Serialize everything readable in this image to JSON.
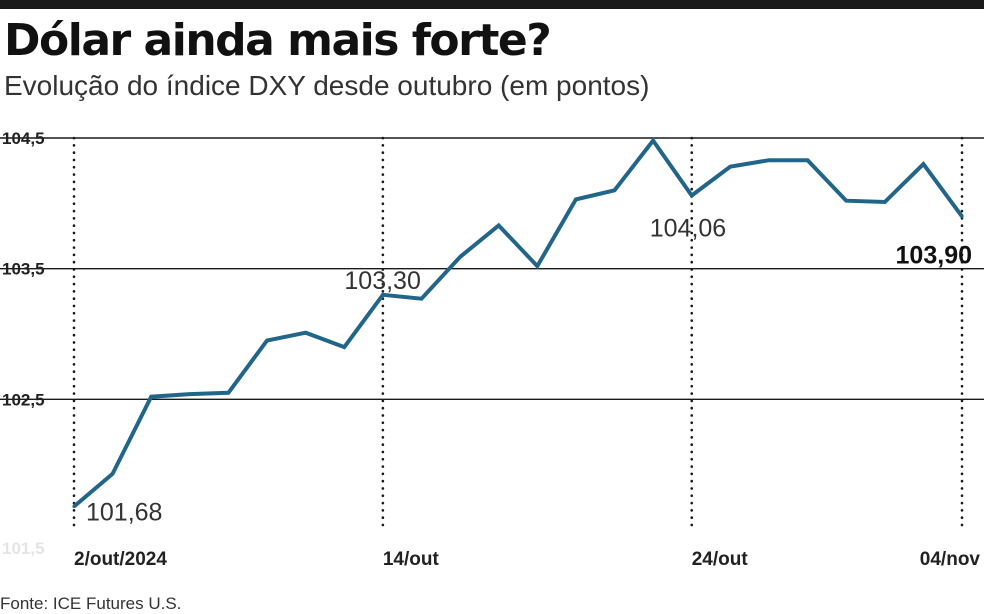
{
  "header": {
    "title": "Dólar ainda mais forte?",
    "subtitle": "Evolução do índice DXY desde outubro (em pontos)"
  },
  "footer": {
    "source": "Fonte: ICE Futures U.S."
  },
  "colors": {
    "line": "#21668a",
    "text": "#1a1a1a",
    "gridline": "#1a1a1a"
  },
  "chart_data": {
    "type": "line",
    "title": "Dólar ainda mais forte?",
    "subtitle": "Evolução do índice DXY desde outubro (em pontos)",
    "xlabel": "",
    "ylabel": "",
    "ylim": [
      101.5,
      104.5
    ],
    "y_ticks": [
      {
        "value": 104.5,
        "label": "104,5"
      },
      {
        "value": 103.5,
        "label": "103,5"
      },
      {
        "value": 102.5,
        "label": "102,5"
      },
      {
        "value": 101.5,
        "label": "101,5"
      }
    ],
    "x_ticks": [
      {
        "index": 0,
        "label": "2/out/2024"
      },
      {
        "index": 8,
        "label": "14/out"
      },
      {
        "index": 16,
        "label": "24/out"
      },
      {
        "index": 23,
        "label": "04/nov"
      }
    ],
    "grid": {
      "horizontal": "solid",
      "vertical": "dotted"
    },
    "series": [
      {
        "values": [
          101.68,
          101.93,
          102.52,
          102.54,
          102.55,
          102.95,
          103.01,
          102.9,
          103.3,
          103.27,
          103.59,
          103.83,
          103.52,
          104.03,
          104.1,
          104.48,
          104.06,
          104.28,
          104.33,
          104.33,
          104.02,
          104.01,
          104.3,
          103.9
        ]
      }
    ],
    "annotations": [
      {
        "index": 0,
        "label": "101,68",
        "emphasis": false
      },
      {
        "index": 8,
        "label": "103,30",
        "emphasis": false
      },
      {
        "index": 16,
        "label": "104,06",
        "emphasis": false
      },
      {
        "index": 23,
        "label": "103,90",
        "emphasis": true
      }
    ]
  }
}
